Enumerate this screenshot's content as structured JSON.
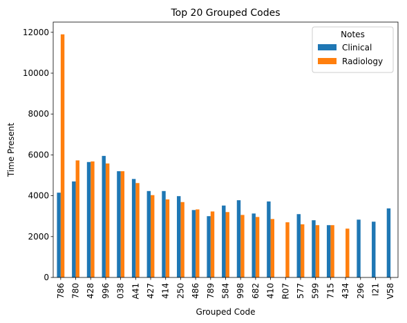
{
  "colors": {
    "clinical": "#1f77b4",
    "radiology": "#ff7f0e"
  },
  "chart_data": {
    "type": "bar",
    "title": "Top 20 Grouped Codes",
    "xlabel": "Grouped Code",
    "ylabel": "Time Present",
    "ylim": [
      0,
      12500
    ],
    "yticks": [
      0,
      2000,
      4000,
      6000,
      8000,
      10000,
      12000
    ],
    "grid": false,
    "legend": {
      "title": "Notes",
      "placement": "top-right"
    },
    "categories": [
      "786",
      "780",
      "428",
      "996",
      "038",
      "A41",
      "427",
      "414",
      "250",
      "486",
      "789",
      "584",
      "998",
      "682",
      "410",
      "R07",
      "577",
      "599",
      "715",
      "434",
      "296",
      "I21",
      "V58"
    ],
    "series": [
      {
        "name": "Clinical",
        "color": "#1f77b4",
        "values": [
          4150,
          4700,
          5650,
          5950,
          5200,
          4820,
          4230,
          4230,
          3980,
          3300,
          3000,
          3520,
          3780,
          3130,
          3720,
          0,
          3100,
          2800,
          2560,
          0,
          2830,
          2730,
          3380
        ]
      },
      {
        "name": "Radiology",
        "color": "#ff7f0e",
        "values": [
          11900,
          5730,
          5680,
          5580,
          5200,
          4620,
          4030,
          3820,
          3690,
          3330,
          3230,
          3200,
          3060,
          2960,
          2860,
          2700,
          2600,
          2560,
          2560,
          2390,
          0,
          0,
          0
        ]
      }
    ]
  }
}
